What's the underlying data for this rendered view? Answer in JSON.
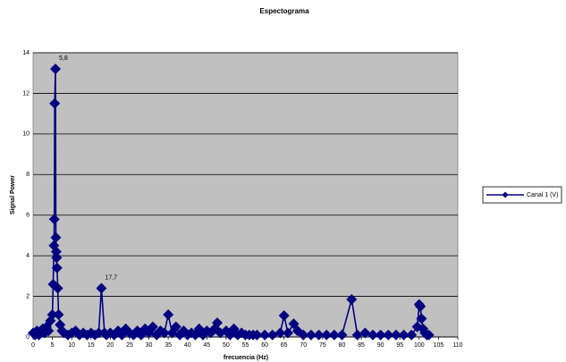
{
  "chart_data": {
    "type": "line",
    "title": "Espectograma",
    "x_label": "frecuencia (Hz)",
    "y_label": "Signal Power",
    "x": [
      0,
      0.5,
      1,
      1.5,
      2,
      2.5,
      3,
      3.5,
      4,
      4.5,
      5,
      5.2,
      5.4,
      5.5,
      5.6,
      5.8,
      5.9,
      6,
      6.1,
      6.2,
      6.4,
      6.6,
      7,
      7.5,
      8,
      9,
      10,
      11,
      12,
      13,
      14,
      15,
      16,
      17,
      17.7,
      18.5,
      19,
      20,
      21,
      22,
      23,
      24,
      25,
      26,
      27,
      28,
      29,
      30,
      31,
      32,
      33,
      34,
      35,
      36,
      37,
      38,
      39,
      40,
      41,
      42,
      43,
      44,
      45,
      46,
      47,
      47.7,
      48.5,
      50,
      51,
      52,
      53,
      54,
      55,
      56,
      57,
      58,
      60,
      62,
      64,
      65,
      66,
      67.5,
      68.5,
      70,
      72,
      74,
      76,
      78,
      80,
      82.5,
      84,
      86,
      88,
      90,
      92,
      94,
      96,
      98,
      99.5,
      100,
      100.3,
      100.6,
      101,
      101.5,
      102,
      102.5
    ],
    "series": [
      {
        "name": "Canal 1 (V)",
        "color": "#000080",
        "values": [
          0.2,
          0.1,
          0.3,
          0.1,
          0.2,
          0.4,
          0.2,
          0.5,
          0.3,
          0.8,
          1.1,
          2.6,
          4.5,
          5.8,
          11.5,
          13.2,
          4.9,
          4.2,
          3.9,
          3.4,
          2.4,
          1.1,
          0.6,
          0.3,
          0.2,
          0.1,
          0.2,
          0.3,
          0.1,
          0.2,
          0.1,
          0.2,
          0.1,
          0.2,
          2.4,
          0.2,
          0.1,
          0.2,
          0.1,
          0.3,
          0.1,
          0.4,
          0.2,
          0.1,
          0.3,
          0.1,
          0.4,
          0.2,
          0.5,
          0.1,
          0.3,
          0.2,
          1.1,
          0.2,
          0.5,
          0.1,
          0.3,
          0.1,
          0.2,
          0.1,
          0.4,
          0.1,
          0.3,
          0.2,
          0.4,
          0.7,
          0.2,
          0.3,
          0.1,
          0.4,
          0.1,
          0.2,
          0.1,
          0.1,
          0.1,
          0.1,
          0.1,
          0.1,
          0.2,
          1.05,
          0.2,
          0.65,
          0.3,
          0.1,
          0.1,
          0.1,
          0.1,
          0.1,
          0.1,
          1.85,
          0.1,
          0.2,
          0.1,
          0.1,
          0.1,
          0.1,
          0.1,
          0.1,
          0.5,
          1.6,
          1.5,
          0.9,
          0.4,
          0.2,
          0.1,
          0.1
        ]
      }
    ],
    "annotations": [
      {
        "text": "5,8",
        "x": 5.8,
        "y": 13.2
      },
      {
        "text": "17,7",
        "x": 17.7,
        "y": 2.4
      }
    ],
    "xlim": [
      0,
      110
    ],
    "xticks": [
      0,
      5,
      10,
      15,
      20,
      25,
      30,
      35,
      40,
      45,
      50,
      55,
      60,
      65,
      70,
      75,
      80,
      85,
      90,
      95,
      100,
      105,
      110
    ],
    "ylim": [
      0,
      14
    ],
    "yticks": [
      0,
      2,
      4,
      6,
      8,
      10,
      12,
      14
    ],
    "grid": true,
    "legend": "right",
    "plot_background": "#c0c0c0"
  }
}
